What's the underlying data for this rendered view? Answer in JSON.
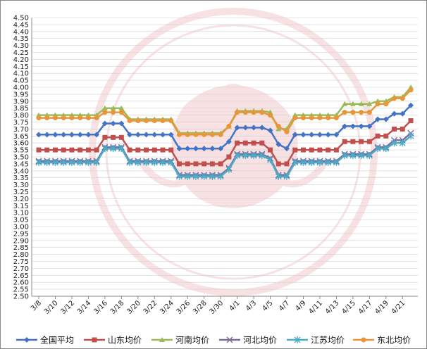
{
  "chart_data": {
    "type": "line",
    "title": "",
    "xlabel": "",
    "ylabel": "",
    "ylim": [
      2.5,
      4.5
    ],
    "ytick_step": 0.05,
    "grid": "horizontal",
    "legend_position": "bottom",
    "x": [
      "3/8",
      "3/9",
      "3/10",
      "3/11",
      "3/12",
      "3/13",
      "3/14",
      "3/15",
      "3/16",
      "3/17",
      "3/18",
      "3/19",
      "3/20",
      "3/21",
      "3/22",
      "3/23",
      "3/24",
      "3/25",
      "3/26",
      "3/27",
      "3/28",
      "3/29",
      "3/30",
      "3/31",
      "4/1",
      "4/2",
      "4/3",
      "4/4",
      "4/5",
      "4/6",
      "4/7",
      "4/8",
      "4/9",
      "4/10",
      "4/11",
      "4/12",
      "4/13",
      "4/14",
      "4/15",
      "4/16",
      "4/17",
      "4/18",
      "4/19",
      "4/20",
      "4/21",
      "4/22"
    ],
    "x_tick_labels": [
      "3/8",
      "3/10",
      "3/12",
      "3/14",
      "3/16",
      "3/18",
      "3/20",
      "3/22",
      "3/24",
      "3/26",
      "3/28",
      "3/30",
      "4/1",
      "4/3",
      "4/5",
      "4/7",
      "4/9",
      "4/11",
      "4/13",
      "4/15",
      "4/17",
      "4/19",
      "4/21"
    ],
    "series": [
      {
        "name": "全国平均",
        "color": "#4472c4",
        "marker": "diamond",
        "values": [
          3.66,
          3.66,
          3.66,
          3.66,
          3.66,
          3.66,
          3.66,
          3.66,
          3.74,
          3.74,
          3.74,
          3.66,
          3.66,
          3.66,
          3.66,
          3.66,
          3.66,
          3.56,
          3.56,
          3.56,
          3.56,
          3.56,
          3.56,
          3.61,
          3.71,
          3.71,
          3.71,
          3.71,
          3.69,
          3.59,
          3.56,
          3.66,
          3.66,
          3.66,
          3.66,
          3.66,
          3.66,
          3.72,
          3.72,
          3.72,
          3.72,
          3.77,
          3.77,
          3.81,
          3.81,
          3.87
        ]
      },
      {
        "name": "山东均价",
        "color": "#c0504d",
        "marker": "square",
        "values": [
          3.55,
          3.55,
          3.55,
          3.55,
          3.55,
          3.55,
          3.55,
          3.55,
          3.64,
          3.64,
          3.64,
          3.55,
          3.55,
          3.55,
          3.55,
          3.55,
          3.55,
          3.45,
          3.45,
          3.45,
          3.45,
          3.45,
          3.45,
          3.5,
          3.6,
          3.6,
          3.6,
          3.6,
          3.55,
          3.45,
          3.45,
          3.55,
          3.55,
          3.55,
          3.55,
          3.55,
          3.55,
          3.61,
          3.61,
          3.61,
          3.61,
          3.65,
          3.65,
          3.7,
          3.7,
          3.76
        ]
      },
      {
        "name": "河南均价",
        "color": "#9bbb59",
        "marker": "triangle",
        "values": [
          3.8,
          3.8,
          3.8,
          3.8,
          3.8,
          3.8,
          3.8,
          3.8,
          3.85,
          3.85,
          3.85,
          3.77,
          3.77,
          3.77,
          3.77,
          3.77,
          3.77,
          3.67,
          3.67,
          3.67,
          3.67,
          3.67,
          3.67,
          3.72,
          3.83,
          3.83,
          3.83,
          3.83,
          3.82,
          3.7,
          3.7,
          3.8,
          3.8,
          3.8,
          3.8,
          3.8,
          3.8,
          3.88,
          3.88,
          3.88,
          3.88,
          3.9,
          3.9,
          3.93,
          3.93,
          4.0
        ]
      },
      {
        "name": "河北均价",
        "color": "#7f6a9f",
        "marker": "x",
        "values": [
          3.47,
          3.47,
          3.47,
          3.47,
          3.47,
          3.47,
          3.47,
          3.47,
          3.57,
          3.57,
          3.57,
          3.47,
          3.47,
          3.47,
          3.47,
          3.47,
          3.47,
          3.37,
          3.37,
          3.37,
          3.37,
          3.37,
          3.37,
          3.42,
          3.52,
          3.52,
          3.52,
          3.52,
          3.49,
          3.37,
          3.37,
          3.47,
          3.47,
          3.47,
          3.47,
          3.47,
          3.47,
          3.52,
          3.52,
          3.52,
          3.52,
          3.57,
          3.57,
          3.62,
          3.62,
          3.67
        ]
      },
      {
        "name": "江苏均价",
        "color": "#4bacc6",
        "marker": "star",
        "values": [
          3.46,
          3.46,
          3.46,
          3.46,
          3.46,
          3.46,
          3.46,
          3.46,
          3.56,
          3.56,
          3.56,
          3.46,
          3.46,
          3.46,
          3.46,
          3.46,
          3.46,
          3.36,
          3.36,
          3.36,
          3.36,
          3.36,
          3.36,
          3.41,
          3.51,
          3.51,
          3.51,
          3.51,
          3.48,
          3.36,
          3.36,
          3.46,
          3.46,
          3.46,
          3.46,
          3.46,
          3.46,
          3.51,
          3.51,
          3.51,
          3.51,
          3.56,
          3.56,
          3.6,
          3.6,
          3.65
        ]
      },
      {
        "name": "东北均价",
        "color": "#e9963a",
        "marker": "circle",
        "values": [
          3.78,
          3.78,
          3.78,
          3.78,
          3.78,
          3.78,
          3.78,
          3.78,
          3.82,
          3.82,
          3.82,
          3.76,
          3.76,
          3.76,
          3.76,
          3.76,
          3.76,
          3.66,
          3.66,
          3.66,
          3.66,
          3.66,
          3.66,
          3.72,
          3.82,
          3.82,
          3.82,
          3.82,
          3.8,
          3.72,
          3.68,
          3.78,
          3.78,
          3.78,
          3.78,
          3.78,
          3.78,
          3.82,
          3.82,
          3.82,
          3.82,
          3.88,
          3.88,
          3.92,
          3.92,
          3.98
        ]
      }
    ]
  }
}
